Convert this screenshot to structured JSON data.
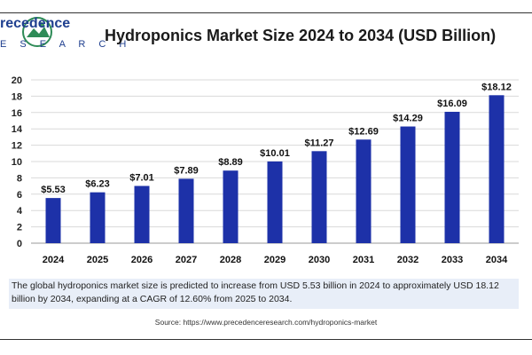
{
  "header": {
    "logo_text_line1": "recedence",
    "logo_text_line2": "E S E A R C H",
    "title": "Hydroponics Market Size 2024 to 2034 (USD Billion)"
  },
  "chart_data": {
    "type": "bar",
    "title": "Hydroponics Market Size 2024 to 2034 (USD Billion)",
    "xlabel": "",
    "ylabel": "",
    "categories": [
      "2024",
      "2025",
      "2026",
      "2027",
      "2028",
      "2029",
      "2030",
      "2031",
      "2032",
      "2033",
      "2034"
    ],
    "values": [
      5.53,
      6.23,
      7.01,
      7.89,
      8.89,
      10.01,
      11.27,
      12.69,
      14.29,
      16.09,
      18.12
    ],
    "data_labels": [
      "$5.53",
      "$6.23",
      "$7.01",
      "$7.89",
      "$8.89",
      "$10.01",
      "$11.27",
      "$12.69",
      "$14.29",
      "$16.09",
      "$18.12"
    ],
    "yticks": [
      "0",
      "2",
      "4",
      "6",
      "8",
      "10",
      "12",
      "14",
      "16",
      "18",
      "20"
    ],
    "ylim": [
      0,
      20
    ],
    "grid": true,
    "bar_color": "#1d31a8"
  },
  "description": "The global hydroponics market size is predicted to increase from USD 5.53 billion in 2024 to approximately USD 18.12 billion by 2034, expanding at a CAGR of 12.60% from 2025 to 2034.",
  "source": "Source: https://www.precedenceresearch.com/hydroponics-market"
}
